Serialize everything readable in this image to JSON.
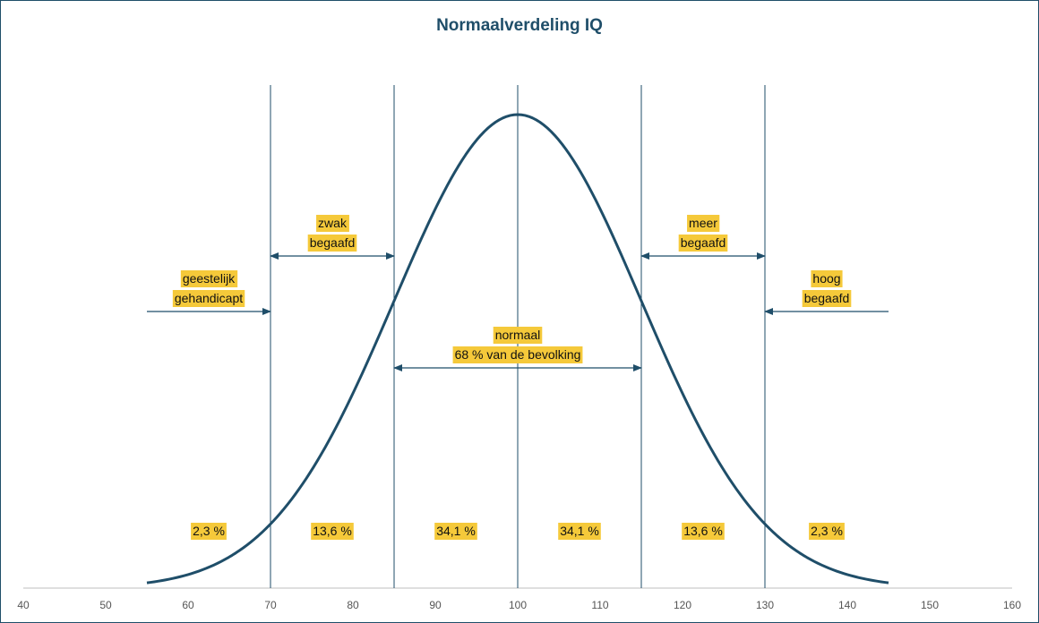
{
  "chart_data": {
    "type": "line",
    "title": "Normaalverdeling IQ",
    "xlabel": "",
    "ylabel": "",
    "xlim": [
      40,
      160
    ],
    "x_ticks": [
      40,
      50,
      60,
      70,
      80,
      90,
      100,
      110,
      120,
      130,
      140,
      150,
      160
    ],
    "curve": {
      "mean": 100,
      "sd": 15,
      "x_range": [
        55,
        145
      ],
      "color": "#1f4e69"
    },
    "boundaries": [
      70,
      85,
      100,
      115,
      130
    ],
    "percentages": [
      {
        "x": 62.5,
        "text": "2,3 %"
      },
      {
        "x": 77.5,
        "text": "13,6 %"
      },
      {
        "x": 92.5,
        "text": "34,1 %"
      },
      {
        "x": 107.5,
        "text": "34,1 %"
      },
      {
        "x": 122.5,
        "text": "13,6 %"
      },
      {
        "x": 137.5,
        "text": "2,3 %"
      }
    ],
    "annotations": [
      {
        "lines": [
          "geestelijk",
          "gehandicapt"
        ],
        "arrow": "right",
        "from": 55,
        "to": 70
      },
      {
        "lines": [
          "zwak",
          "begaafd"
        ],
        "arrow": "both",
        "from": 70,
        "to": 85
      },
      {
        "lines": [
          "normaal",
          "68 % van de bevolking"
        ],
        "arrow": "both",
        "from": 85,
        "to": 115
      },
      {
        "lines": [
          "meer",
          "begaafd"
        ],
        "arrow": "both",
        "from": 115,
        "to": 130
      },
      {
        "lines": [
          "hoog",
          "begaafd"
        ],
        "arrow": "left",
        "from": 130,
        "to": 145
      }
    ],
    "highlight_color": "#f5c93a"
  }
}
